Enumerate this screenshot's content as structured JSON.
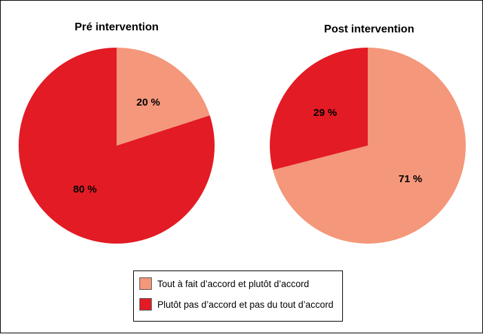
{
  "chart_data": [
    {
      "type": "pie",
      "title": "Pré intervention",
      "categories": [
        "Tout à fait d’accord et plutôt d’accord",
        "Plutôt pas d’accord et pas du tout d’accord"
      ],
      "values": [
        20,
        80
      ],
      "labels": [
        "20 %",
        "80 %"
      ],
      "colors": [
        "#f4977b",
        "#e31b24"
      ],
      "legend": "bottom-center"
    },
    {
      "type": "pie",
      "title": "Post intervention",
      "categories": [
        "Tout à fait d’accord et plutôt d’accord",
        "Plutôt pas d’accord et pas du tout d’accord"
      ],
      "values": [
        71,
        29
      ],
      "labels": [
        "71 %",
        "29 %"
      ],
      "colors": [
        "#f4977b",
        "#e31b24"
      ],
      "legend": "bottom-center"
    }
  ],
  "legend": {
    "items": [
      {
        "label": "Tout à fait d’accord et plutôt d’accord",
        "color": "#f4977b"
      },
      {
        "label": "Plutôt pas d’accord et pas du tout d’accord",
        "color": "#e31b24"
      }
    ]
  }
}
